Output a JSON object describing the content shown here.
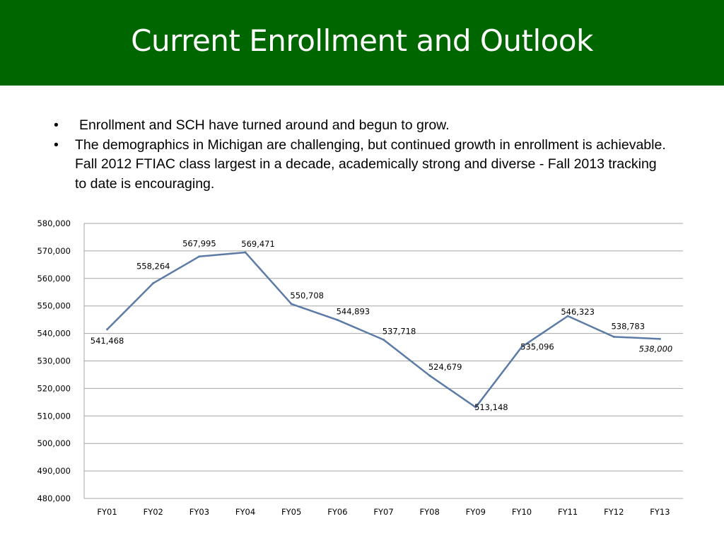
{
  "header": {
    "title": "Current Enrollment and Outlook"
  },
  "bullets": [
    "Enrollment and SCH have turned around and begun to grow.",
    "The demographics in Michigan are challenging, but continued growth in enrollment is achievable. Fall 2012 FTIAC class largest in a decade, academically strong and diverse - Fall 2013 tracking to date is encouraging."
  ],
  "bullet_symbol": "•",
  "colors": {
    "title_bar": "#006600",
    "line": "#5b7ba6",
    "grid": "#a6a6a6"
  },
  "chart_data": {
    "type": "line",
    "categories": [
      "FY01",
      "FY02",
      "FY03",
      "FY04",
      "FY05",
      "FY06",
      "FY07",
      "FY08",
      "FY09",
      "FY10",
      "FY11",
      "FY12",
      "FY13"
    ],
    "values": [
      541468,
      558264,
      567995,
      569471,
      550708,
      544893,
      537718,
      524679,
      513148,
      535096,
      546323,
      538783,
      538000
    ],
    "data_labels": [
      "541,468",
      "558,264",
      "567,995",
      "569,471",
      "550,708",
      "544,893",
      "537,718",
      "524,679",
      "513,148",
      "535,096",
      "546,323",
      "538,783",
      "538,000"
    ],
    "projected_index": 12,
    "ylim": [
      480000,
      580000
    ],
    "y_ticks": [
      "480,000",
      "490,000",
      "500,000",
      "510,000",
      "520,000",
      "530,000",
      "540,000",
      "550,000",
      "560,000",
      "570,000",
      "580,000"
    ],
    "grid": true,
    "title": "",
    "xlabel": "",
    "ylabel": ""
  }
}
